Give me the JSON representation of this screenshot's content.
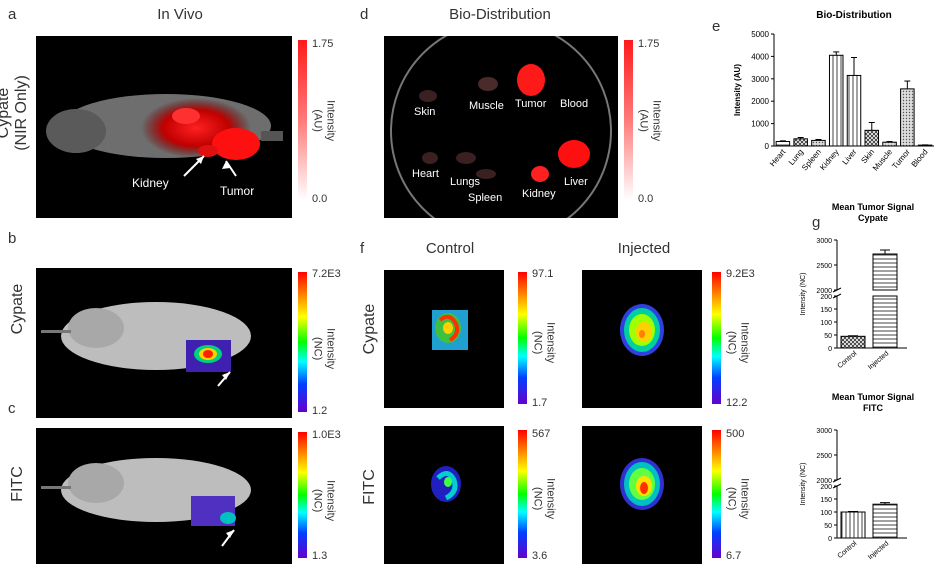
{
  "panels": {
    "a": {
      "letter": "a",
      "title": "In Vivo",
      "row_label": "Cypate\n(NIR Only)",
      "labels": [
        "Kidney",
        "Tumor"
      ],
      "cbar": {
        "max": "1.75",
        "min": "0.0",
        "label": "Intensity\n(AU)"
      }
    },
    "b": {
      "letter": "b",
      "row_label": "Cypate",
      "cbar": {
        "max": "7.2E3",
        "min": "1.2",
        "label": "Intensity\n(NC)"
      }
    },
    "c": {
      "letter": "c",
      "row_label": "FITC",
      "cbar": {
        "max": "1.0E3",
        "min": "1.3",
        "label": "Intensity\n(NC)"
      }
    },
    "d": {
      "letter": "d",
      "title": "Bio-Distribution",
      "organs": [
        "Skin",
        "Muscle",
        "Tumor",
        "Blood",
        "Heart",
        "Lungs",
        "Spleen",
        "Kidney",
        "Liver"
      ],
      "cbar": {
        "max": "1.75",
        "min": "0.0",
        "label": "Intensity\n(AU)"
      }
    },
    "f": {
      "letter": "f",
      "col_control": "Control",
      "col_injected": "Injected",
      "row_cypate": "Cypate",
      "row_fitc": "FITC",
      "cbars": [
        {
          "max": "97.1",
          "min": "1.7",
          "label": "Intensity\n(NC)"
        },
        {
          "max": "9.2E3",
          "min": "12.2",
          "label": "Intensity\n(NC)"
        },
        {
          "max": "567",
          "min": "3.6",
          "label": "Intensity\n(NC)"
        },
        {
          "max": "500",
          "min": "6.7",
          "label": "Intensity\n(NC)"
        }
      ]
    },
    "e": {
      "letter": "e"
    },
    "g": {
      "letter": "g"
    }
  },
  "chart_data": [
    {
      "type": "bar",
      "title": "Bio-Distribution",
      "ylabel": "Intensity (AU)",
      "ylim": [
        0,
        5000
      ],
      "yticks": [
        0,
        1000,
        2000,
        3000,
        4000,
        5000
      ],
      "categories": [
        "Heart",
        "Lung",
        "Spleen",
        "Kidney",
        "Liver",
        "Skin",
        "Muscle",
        "Tumor",
        "Blood"
      ],
      "values": [
        200,
        320,
        250,
        4050,
        3150,
        700,
        170,
        2550,
        40
      ],
      "errors": [
        30,
        60,
        40,
        150,
        800,
        350,
        30,
        350,
        10
      ]
    },
    {
      "type": "bar",
      "title": "Mean Tumor Signal\nCypate",
      "ylabel": "Intensity (NC)",
      "axis_break": [
        200,
        2000
      ],
      "yticks": [
        0,
        50,
        100,
        150,
        200,
        2000,
        2500,
        3000
      ],
      "categories": [
        "Control",
        "Injected"
      ],
      "values": [
        45,
        2720
      ],
      "errors": [
        2,
        80
      ]
    },
    {
      "type": "bar",
      "title": "Mean Tumor Signal\nFITC",
      "ylabel": "Intensity (NC)",
      "axis_break": [
        200,
        2000
      ],
      "yticks": [
        0,
        50,
        100,
        150,
        200,
        2000,
        2500,
        3000
      ],
      "categories": [
        "Control",
        "Injected"
      ],
      "values": [
        100,
        130
      ],
      "errors": [
        2,
        6
      ]
    }
  ]
}
